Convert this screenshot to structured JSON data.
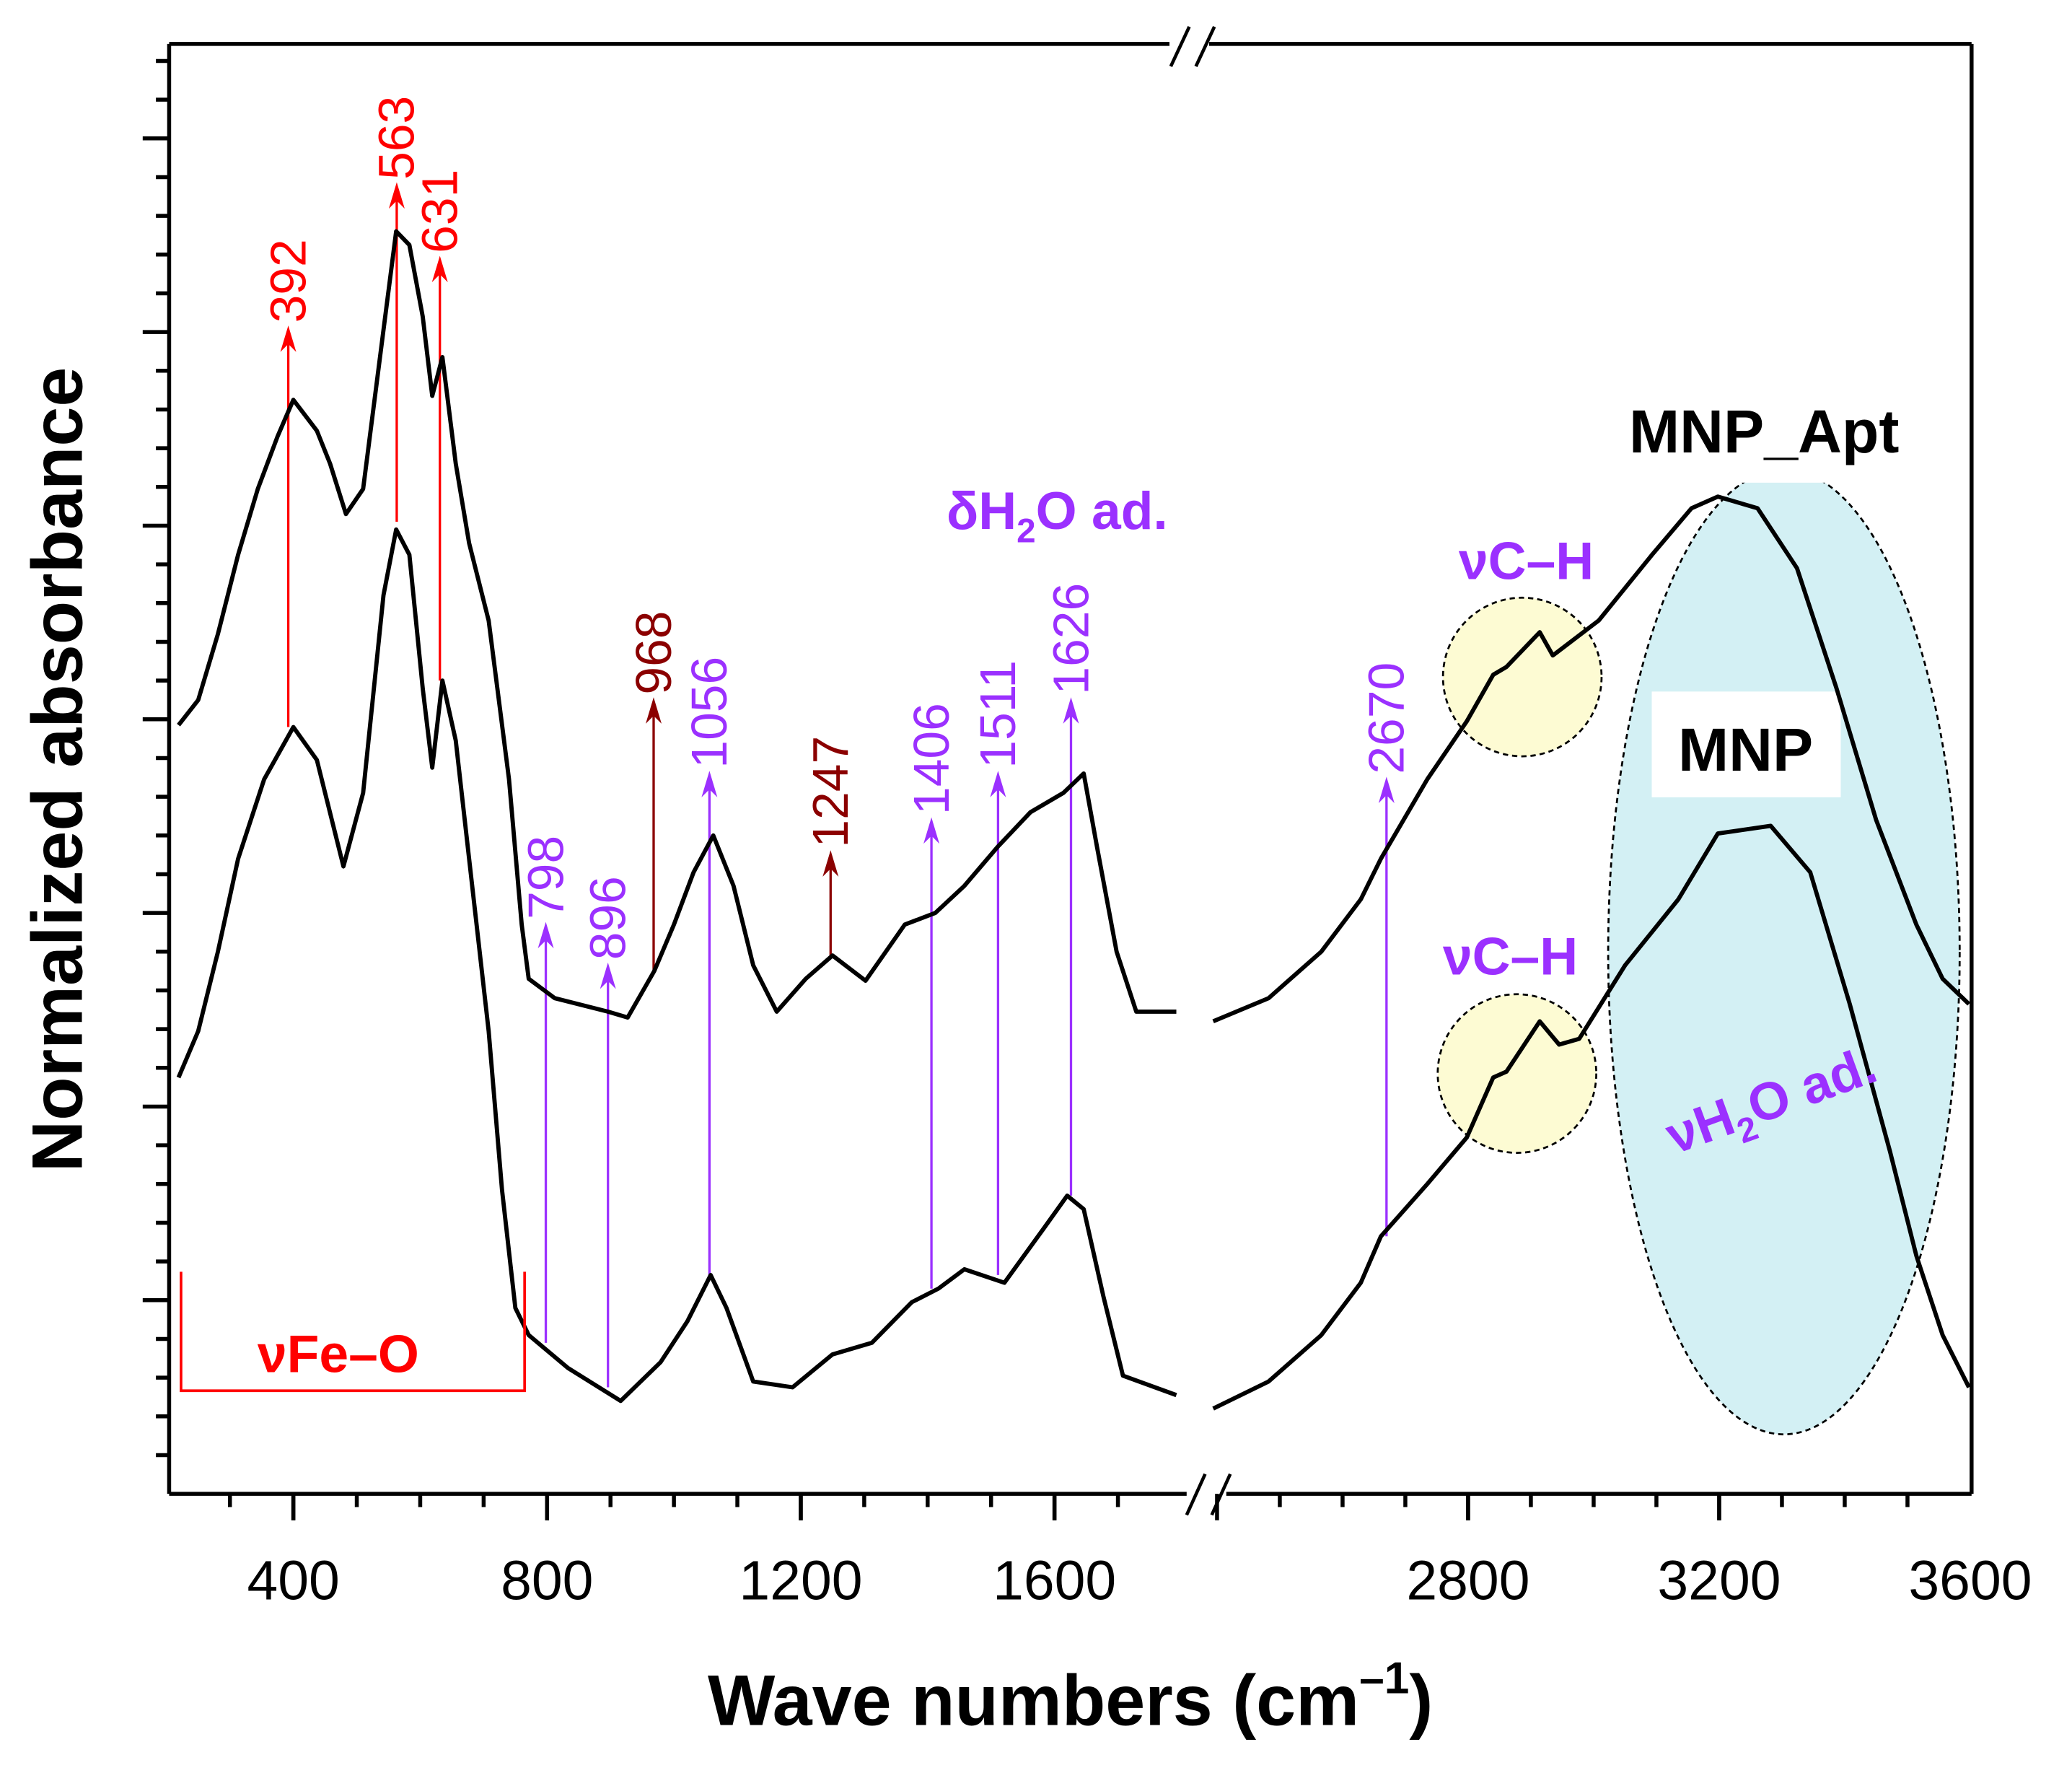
{
  "chart_data": {
    "type": "line",
    "title": "",
    "xlabel": "Wave numbers (cm⁻¹)",
    "ylabel": "Normalized absorbance",
    "x_segments": [
      [
        200,
        1800
      ],
      [
        2380,
        3600
      ]
    ],
    "xlim": [
      200,
      3600
    ],
    "ylim": [
      0,
      7.5
    ],
    "x_ticks": [
      400,
      800,
      1200,
      1600,
      2800,
      3200,
      3600
    ],
    "x_tick_labels": [
      "400",
      "800",
      "1200",
      "1600",
      "2800",
      "3200",
      "3600"
    ],
    "y_tick_labels_shown": false,
    "grid": false,
    "axis_break": "between 1800 and 2380",
    "series": [
      {
        "name": "MNP_Apt",
        "color": "#000000",
        "segments": [
          {
            "x": [
              219,
              250,
              281,
              313,
              344,
              375,
              400,
              437,
              458,
              483,
              510,
              542,
              562,
              583,
              604,
              619,
              635,
              656,
              677,
              708,
              740,
              760,
              771,
              812,
              896,
              927,
              969,
              1000,
              1031,
              1062,
              1094,
              1125,
              1162,
              1208,
              1250,
              1302,
              1364,
              1412,
              1458,
              1510,
              1562,
              1614,
              1646,
              1667,
              1698,
              1729,
              1792
            ],
            "y": [
              3.97,
              4.1,
              4.44,
              4.85,
              5.19,
              5.46,
              5.65,
              5.49,
              5.32,
              5.06,
              5.19,
              6.01,
              6.52,
              6.45,
              6.08,
              5.67,
              5.87,
              5.32,
              4.91,
              4.51,
              3.69,
              2.94,
              2.66,
              2.56,
              2.49,
              2.46,
              2.7,
              2.94,
              3.21,
              3.4,
              3.14,
              2.73,
              2.49,
              2.66,
              2.78,
              2.65,
              2.94,
              3.0,
              3.14,
              3.34,
              3.52,
              3.62,
              3.72,
              3.34,
              2.8,
              2.49,
              2.49
            ]
          },
          {
            "x": [
              2394,
              2482,
              2566,
              2629,
              2661,
              2735,
              2798,
              2840,
              2861,
              2914,
              2935,
              3008,
              3093,
              3156,
              3198,
              3261,
              3324,
              3387,
              3450,
              3514,
              3556,
              3598
            ],
            "y": [
              2.44,
              2.56,
              2.8,
              3.07,
              3.28,
              3.69,
              3.99,
              4.23,
              4.27,
              4.45,
              4.33,
              4.51,
              4.85,
              5.09,
              5.15,
              5.09,
              4.78,
              4.16,
              3.48,
              2.94,
              2.66,
              2.53
            ]
          }
        ]
      },
      {
        "name": "MNP",
        "color": "#000000",
        "segments": [
          {
            "x": [
              219,
              250,
              281,
              313,
              354,
              400,
              437,
              479,
              510,
              542,
              562,
              583,
              604,
              619,
              635,
              656,
              677,
              708,
              729,
              750,
              771,
              833,
              916,
              979,
              1021,
              1058,
              1083,
              1125,
              1187,
              1250,
              1312,
              1375,
              1417,
              1458,
              1521,
              1583,
              1620,
              1646,
              1677,
              1708,
              1792
            ],
            "y": [
              2.15,
              2.39,
              2.8,
              3.28,
              3.69,
              3.96,
              3.79,
              3.24,
              3.62,
              4.64,
              4.98,
              4.85,
              4.16,
              3.75,
              4.2,
              3.89,
              3.28,
              2.39,
              1.57,
              0.96,
              0.82,
              0.65,
              0.48,
              0.68,
              0.89,
              1.13,
              0.96,
              0.58,
              0.55,
              0.72,
              0.78,
              0.99,
              1.06,
              1.16,
              1.09,
              1.37,
              1.54,
              1.47,
              1.02,
              0.61,
              0.51
            ]
          },
          {
            "x": [
              2394,
              2482,
              2566,
              2629,
              2661,
              2735,
              2798,
              2840,
              2861,
              2914,
              2945,
              2977,
              3050,
              3135,
              3198,
              3282,
              3345,
              3408,
              3472,
              3514,
              3556,
              3598
            ],
            "y": [
              0.44,
              0.58,
              0.82,
              1.09,
              1.33,
              1.6,
              1.84,
              2.15,
              2.18,
              2.44,
              2.32,
              2.35,
              2.73,
              3.07,
              3.41,
              3.45,
              3.21,
              2.53,
              1.77,
              1.23,
              0.82,
              0.55
            ]
          }
        ]
      }
    ],
    "peak_markers": [
      {
        "label": "392",
        "x": 392,
        "y_from": 3.96,
        "y_to": 6.02,
        "color": "#ff0000"
      },
      {
        "label": "563",
        "x": 563,
        "y_from": 5.02,
        "y_to": 6.76,
        "color": "#ff0000"
      },
      {
        "label": "631",
        "x": 631,
        "y_from": 4.2,
        "y_to": 6.38,
        "color": "#ff0000"
      },
      {
        "label": "798",
        "x": 798,
        "y_from": 0.78,
        "y_to": 2.94,
        "color": "#9b30ff"
      },
      {
        "label": "896",
        "x": 896,
        "y_from": 0.55,
        "y_to": 2.73,
        "color": "#9b30ff"
      },
      {
        "label": "968",
        "x": 968,
        "y_from": 2.7,
        "y_to": 4.1,
        "color": "#8b0000"
      },
      {
        "label": "1056",
        "x": 1056,
        "y_from": 1.13,
        "y_to": 3.72,
        "color": "#9b30ff"
      },
      {
        "label": "1247",
        "x": 1247,
        "y_from": 2.78,
        "y_to": 3.31,
        "color": "#8b0000"
      },
      {
        "label": "1406",
        "x": 1406,
        "y_from": 1.06,
        "y_to": 3.48,
        "color": "#9b30ff"
      },
      {
        "label": "1511",
        "x": 1511,
        "y_from": 1.13,
        "y_to": 3.72,
        "color": "#9b30ff"
      },
      {
        "label": "1626",
        "x": 1626,
        "y_from": 1.54,
        "y_to": 4.1,
        "color": "#9b30ff"
      },
      {
        "label": "2670",
        "x": 2670,
        "y_from": 1.33,
        "y_to": 3.69,
        "color": "#9b30ff"
      }
    ],
    "annotations": {
      "fe_o": "νFe–O",
      "delta_h2o": "δH",
      "delta_h2o_sub": "2",
      "delta_h2o_rest": "O ad.",
      "ch_top": "νC–H",
      "ch_bottom": "νC–H",
      "nu_h2o": "νH",
      "nu_h2o_sub": "2",
      "nu_h2o_rest": "O ad.",
      "label_apt": "MNP_Apt",
      "label_mnp": "MNP"
    },
    "colors": {
      "fe_o": "#ff0000",
      "violet": "#9b30ff",
      "highlight_ch": "#fdfbd3",
      "highlight_water": "#d3f0f4"
    }
  },
  "axis_text": {
    "ylabel": "Normalized absorbance",
    "xlabel_main": "Wave numbers (cm",
    "xlabel_sup": "–1",
    "xlabel_end": ")"
  }
}
